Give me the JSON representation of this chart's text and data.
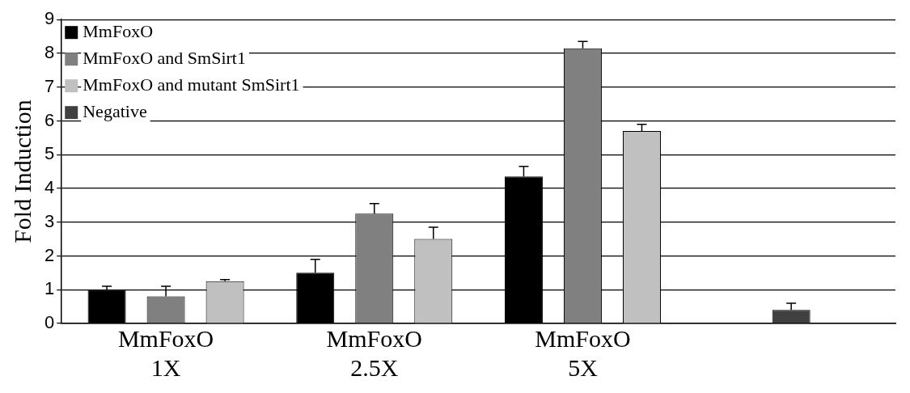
{
  "chart_data": {
    "type": "bar",
    "ylabel": "Fold Induction",
    "categories": [
      "MmFoxO 1X",
      "MmFoxO 2.5X",
      "MmFoxO 5X",
      null
    ],
    "series": [
      {
        "name": "MmFoxO",
        "color": "#000000",
        "values": [
          1.0,
          1.5,
          4.35,
          null
        ],
        "errors": [
          0.1,
          0.4,
          0.3,
          null
        ]
      },
      {
        "name": "MmFoxO and SmSirt1",
        "color": "#808080",
        "values": [
          0.8,
          3.25,
          8.15,
          null
        ],
        "errors": [
          0.3,
          0.3,
          0.2,
          null
        ]
      },
      {
        "name": "MmFoxO and mutant SmSirt1",
        "color": "#c0c0c0",
        "values": [
          1.25,
          2.5,
          5.7,
          null
        ],
        "errors": [
          0.05,
          0.35,
          0.2,
          null
        ]
      },
      {
        "name": "Negative",
        "color": "#404040",
        "values": [
          null,
          null,
          null,
          0.4
        ],
        "errors": [
          null,
          null,
          null,
          0.2
        ]
      }
    ],
    "ylim": [
      0,
      9
    ],
    "yticks": [
      0,
      1,
      2,
      3,
      4,
      5,
      6,
      7,
      8,
      9
    ],
    "grid": "y",
    "legend": "top left"
  }
}
